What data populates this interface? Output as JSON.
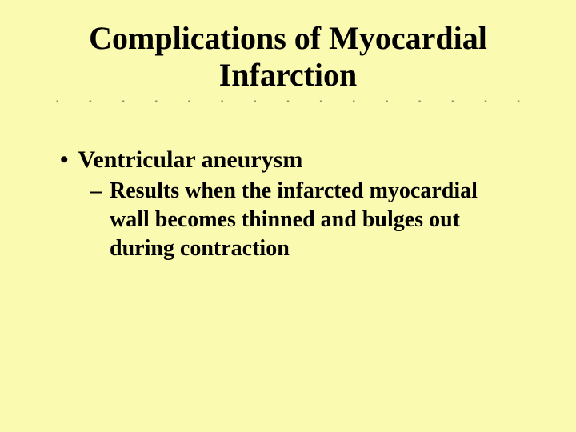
{
  "slide": {
    "background_color": "#fbfab1",
    "text_color": "#000000",
    "title": {
      "line1": "Complications of Myocardial",
      "line2": "Infarction",
      "fontsize": 40
    },
    "divider": {
      "dot_char": "▪",
      "dot_count": 15,
      "dot_color": "#8b8b6e",
      "dot_fontsize": 10
    },
    "bullet": {
      "marker": "•",
      "text": "Ventricular aneurysm",
      "fontsize": 30
    },
    "sub_bullet": {
      "marker": "–",
      "text": "Results when the infarcted myocardial wall becomes thinned and bulges out during contraction",
      "fontsize": 28
    }
  }
}
